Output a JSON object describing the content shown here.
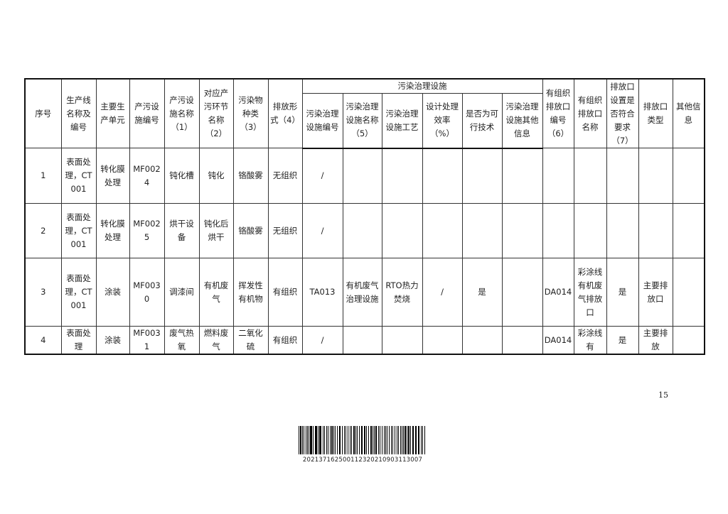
{
  "table": {
    "group_header": "污染治理设施",
    "headers_before": [
      "序号",
      "生产线名称及编号",
      "主要生产单元",
      "产污设施编号",
      "产污设施名称（1）",
      "对应产污环节名称（2）",
      "污染物种类（3）",
      "排放形式（4）"
    ],
    "group_sub_headers": [
      "污染治理设施编号",
      "污染治理设施名称（5）",
      "污染治理设施工艺",
      "设计处理效率（%）",
      "是否为可行技术",
      "污染治理设施其他信息"
    ],
    "headers_after": [
      "有组织排放口编号（6）",
      "有组织排放口名称",
      "排放口设置是否符合要求（7）",
      "排放口类型",
      "其他信息"
    ],
    "rows": [
      [
        "1",
        "表面处理，CT001",
        "转化膜处理",
        "MF0024",
        "钝化槽",
        "钝化",
        "铬酸雾",
        "无组织",
        "/",
        "",
        "",
        "",
        "",
        "",
        "",
        "",
        "",
        "",
        ""
      ],
      [
        "2",
        "表面处理，CT001",
        "转化膜处理",
        "MF0025",
        "烘干设备",
        "钝化后烘干",
        "铬酸雾",
        "无组织",
        "/",
        "",
        "",
        "",
        "",
        "",
        "",
        "",
        "",
        "",
        ""
      ],
      [
        "3",
        "表面处理，CT001",
        "涂装",
        "MF0030",
        "调漆间",
        "有机废气",
        "挥发性有机物",
        "有组织",
        "TA013",
        "有机废气治理设施",
        "RTO热力焚烧",
        "/",
        "是",
        "",
        "DA014",
        "彩涂线有机废气排放口",
        "是",
        "主要排放口",
        ""
      ],
      [
        "4",
        "表面处理",
        "涂装",
        "MF0031",
        "废气热氧",
        "燃料废气",
        "二氧化硫",
        "有组织",
        "/",
        "",
        "",
        "",
        "",
        "",
        "DA014",
        "彩涂线有",
        "是",
        "主要排放",
        ""
      ]
    ]
  },
  "page_number": "15",
  "barcode_number": "202137162500112320210903113007"
}
